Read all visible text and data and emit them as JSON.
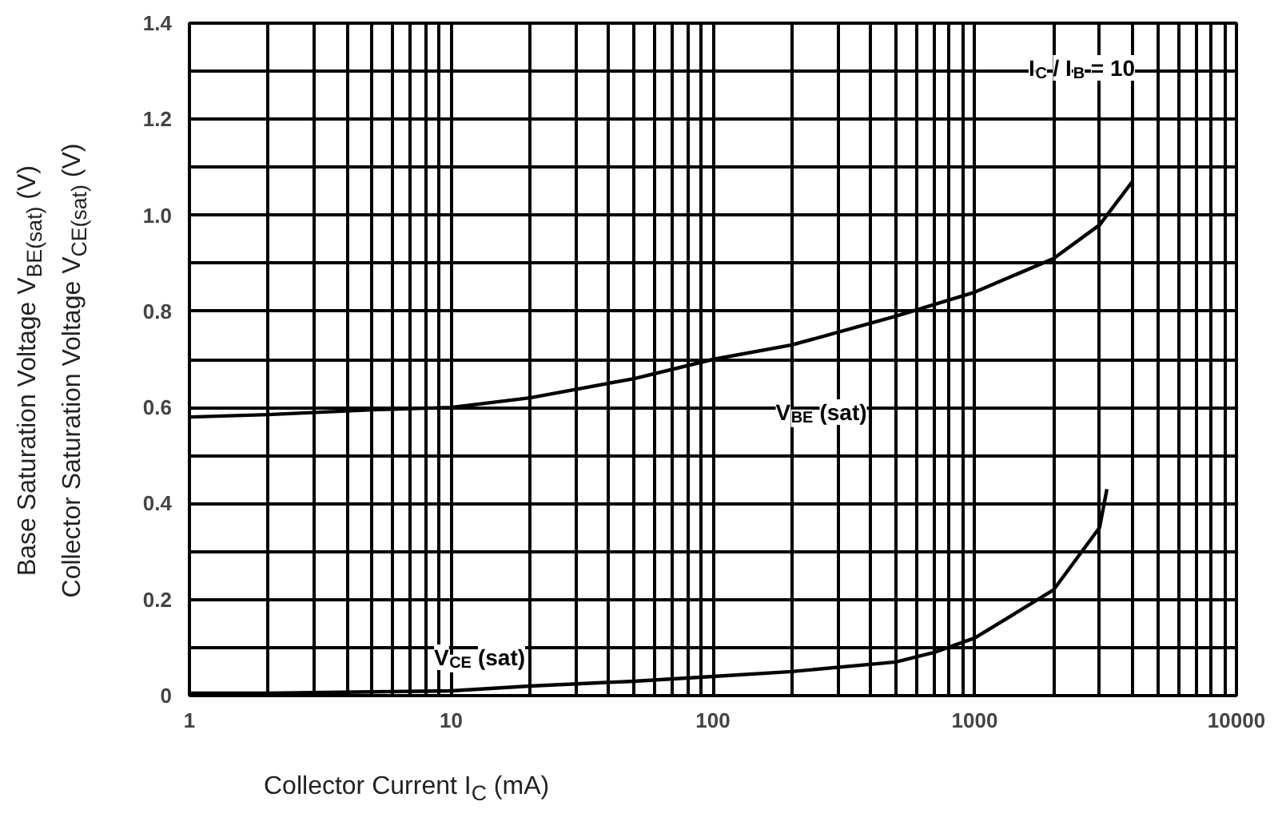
{
  "chart_data": {
    "type": "line",
    "xlabel": "Collector Current I$_{C}$ (mA)",
    "ylabel": "Base Saturation Voltage V$_{BE(sat)}$ (V)\nCollector Saturation Voltage V$_{CE(sat)}$ (V)",
    "annotations": [
      "I$_{C}$ / I$_{B}$ = 10"
    ],
    "log": "x",
    "x": [
      1,
      2,
      5,
      10,
      20,
      50,
      100,
      200,
      500,
      1000,
      2000,
      3000,
      4000
    ],
    "series": [
      {
        "name": "V$_{BE}$ (sat)",
        "color": "#000000",
        "values": [
          0.58,
          0.585,
          0.595,
          0.6,
          0.62,
          0.66,
          0.7,
          0.73,
          0.79,
          0.84,
          0.91,
          0.98,
          1.07
        ]
      },
      {
        "name": "V$_{CE}$ (sat)",
        "color": "#000000",
        "x": [
          1,
          2,
          5,
          10,
          20,
          50,
          100,
          200,
          500,
          700,
          1000,
          2000,
          3000,
          3200
        ],
        "values": [
          0.005,
          0.005,
          0.008,
          0.01,
          0.02,
          0.03,
          0.04,
          0.05,
          0.07,
          0.09,
          0.12,
          0.22,
          0.35,
          0.43
        ]
      }
    ],
    "xlim": [
      1,
      10000
    ],
    "ylim": [
      0,
      1.4
    ],
    "xticks": [
      1,
      {
        "value": 2,
        "label": null
      },
      {
        "value": 3,
        "label": null
      },
      {
        "value": 4,
        "label": null
      },
      {
        "value": 5,
        "label": null
      },
      {
        "value": 6,
        "label": null
      },
      {
        "value": 7,
        "label": null
      },
      {
        "value": 8,
        "label": null
      },
      {
        "value": 9,
        "label": null
      },
      10,
      {
        "value": 20,
        "label": null
      },
      {
        "value": 30,
        "label": null
      },
      {
        "value": 40,
        "label": null
      },
      {
        "value": 50,
        "label": null
      },
      {
        "value": 60,
        "label": null
      },
      {
        "value": 70,
        "label": null
      },
      {
        "value": 80,
        "label": null
      },
      {
        "value": 90,
        "label": null
      },
      100,
      {
        "value": 200,
        "label": null
      },
      {
        "value": 300,
        "label": null
      },
      {
        "value": 400,
        "label": null
      },
      {
        "value": 500,
        "label": null
      },
      {
        "value": 600,
        "label": null
      },
      {
        "value": 700,
        "label": null
      },
      {
        "value": 800,
        "label": null
      },
      {
        "value": 900,
        "label": null
      },
      1000,
      {
        "value": 2000,
        "label": null
      },
      {
        "value": 3000,
        "label": null
      },
      {
        "value": 4000,
        "label": null
      },
      {
        "value": 5000,
        "label": null
      },
      {
        "value": 6000,
        "label": null
      },
      {
        "value": 7000,
        "label": null
      },
      {
        "value": 8000,
        "label": null
      },
      {
        "value": 9000,
        "label": null
      },
      10000
    ],
    "yticks": [
      {
        "value": 0,
        "label": "0"
      },
      {
        "value": 0.1,
        "label": null
      },
      0.2,
      {
        "value": 0.3,
        "label": null
      },
      0.4,
      {
        "value": 0.5,
        "label": null
      },
      0.6,
      {
        "value": 0.7,
        "label": null
      },
      0.8,
      {
        "value": 0.9,
        "label": null
      },
      {
        "value": 1.0,
        "label": "1.0"
      },
      {
        "value": 1.1,
        "label": null
      },
      1.2,
      {
        "value": 1.3,
        "label": null
      },
      1.4
    ],
    "grid": true,
    "marker": "none",
    "line_style": "solid"
  }
}
